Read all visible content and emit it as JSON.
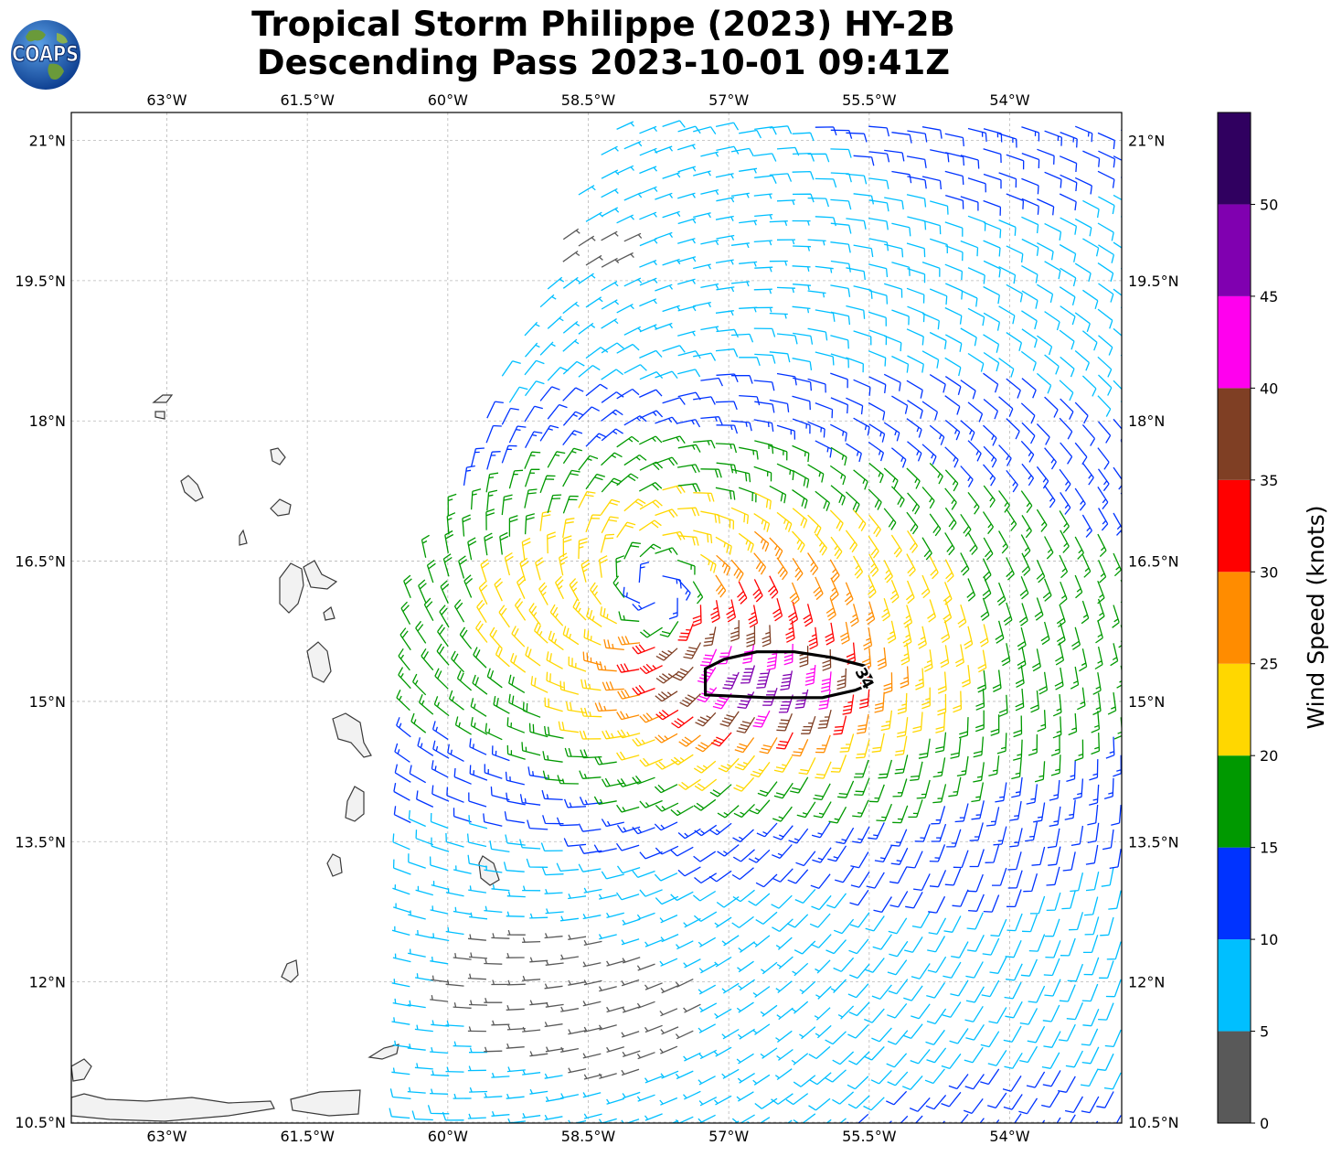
{
  "title": {
    "line1": "Tropical Storm Philippe (2023) HY-2B",
    "line2": "Descending Pass 2023-10-01 09:41Z"
  },
  "logo": {
    "text": "COAPS",
    "icon": "globe-icon"
  },
  "map": {
    "lon_range": [
      -64.0,
      -52.75
    ],
    "lat_range": [
      10.5,
      21.3
    ],
    "lon_ticks": [
      {
        "value": -63.0,
        "label": "63°W"
      },
      {
        "value": -61.5,
        "label": "61.5°W"
      },
      {
        "value": -60.0,
        "label": "60°W"
      },
      {
        "value": -58.5,
        "label": "58.5°W"
      },
      {
        "value": -57.0,
        "label": "57°W"
      },
      {
        "value": -55.5,
        "label": "55.5°W"
      },
      {
        "value": -54.0,
        "label": "54°W"
      }
    ],
    "lat_ticks": [
      {
        "value": 21.0,
        "label": "21°N"
      },
      {
        "value": 19.5,
        "label": "19.5°N"
      },
      {
        "value": 18.0,
        "label": "18°N"
      },
      {
        "value": 16.5,
        "label": "16.5°N"
      },
      {
        "value": 15.0,
        "label": "15°N"
      },
      {
        "value": 13.5,
        "label": "13.5°N"
      },
      {
        "value": 12.0,
        "label": "12°N"
      },
      {
        "value": 10.5,
        "label": "10.5°N"
      }
    ],
    "grid": true,
    "storm_center": {
      "lon": -57.8,
      "lat": 16.2
    },
    "contour": {
      "label": "34",
      "points": [
        [
          -57.25,
          15.35
        ],
        [
          -57.05,
          15.45
        ],
        [
          -56.7,
          15.53
        ],
        [
          -56.3,
          15.53
        ],
        [
          -55.9,
          15.47
        ],
        [
          -55.55,
          15.38
        ],
        [
          -55.45,
          15.2
        ],
        [
          -55.65,
          15.12
        ],
        [
          -56.0,
          15.04
        ],
        [
          -56.6,
          15.04
        ],
        [
          -57.25,
          15.07
        ]
      ]
    }
  },
  "colorbar": {
    "label": "Wind Speed (knots)",
    "ticks": [
      0,
      5,
      10,
      15,
      20,
      25,
      30,
      35,
      40,
      45,
      50
    ],
    "colors": [
      "#595959",
      "#00bfff",
      "#0033ff",
      "#009900",
      "#ffd700",
      "#ff8c00",
      "#ff0000",
      "#7f3f24",
      "#ff00ee",
      "#8000b0",
      "#300060"
    ]
  }
}
